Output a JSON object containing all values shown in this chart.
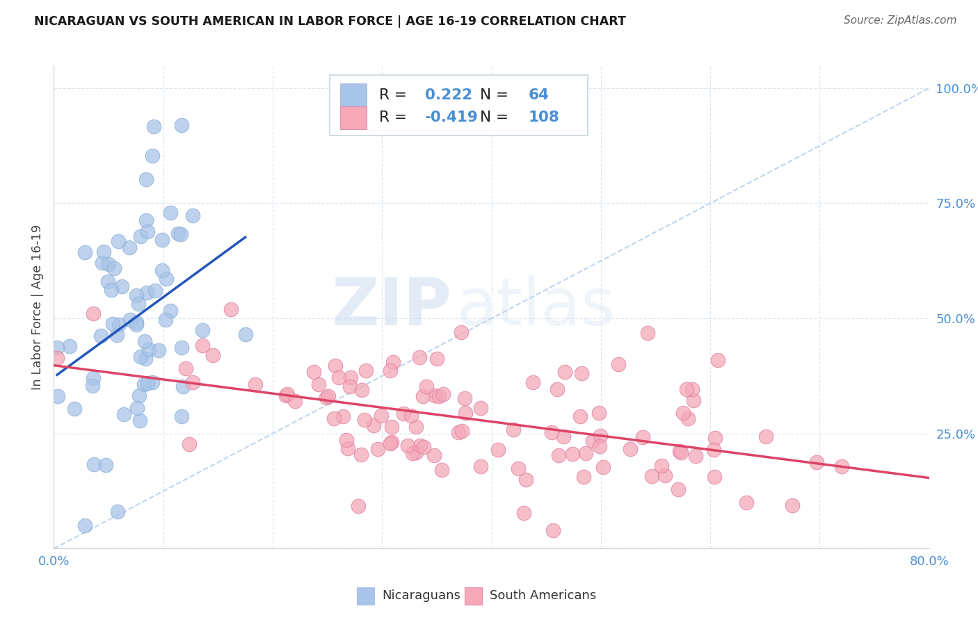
{
  "title": "NICARAGUAN VS SOUTH AMERICAN IN LABOR FORCE | AGE 16-19 CORRELATION CHART",
  "source": "Source: ZipAtlas.com",
  "ylabel": "In Labor Force | Age 16-19",
  "xlim": [
    0.0,
    0.8
  ],
  "ylim": [
    0.0,
    1.05
  ],
  "blue_R": 0.222,
  "blue_N": 64,
  "pink_R": -0.419,
  "pink_N": 108,
  "blue_color": "#a8c4e8",
  "blue_edge_color": "#8ab0d8",
  "blue_line_color": "#2255bb",
  "pink_color": "#f4a8b8",
  "pink_edge_color": "#e080a0",
  "pink_line_color": "#dd4466",
  "ref_line_color": "#c0d4ec",
  "watermark_zip": "ZIP",
  "watermark_atlas": "atlas",
  "legend_label_blue": "Nicaraguans",
  "legend_label_pink": "South Americans",
  "grid_color": "#d8e4f0",
  "title_color": "#1a1a1a",
  "source_color": "#666666",
  "tick_color": "#4a8fd4",
  "ylabel_color": "#444444",
  "legend_box_color": "#e0eaf8"
}
